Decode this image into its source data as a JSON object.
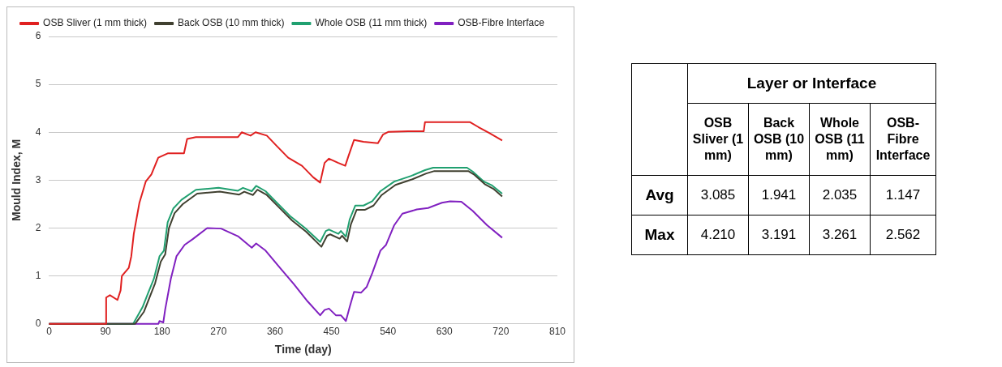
{
  "chart_data": [
    {
      "type": "line",
      "xlabel": "Time (day)",
      "ylabel": "Mould Index, M",
      "xlim": [
        0,
        810
      ],
      "xticks": [
        0,
        90,
        180,
        270,
        360,
        450,
        540,
        630,
        720,
        810
      ],
      "ylim": [
        0,
        6
      ],
      "yticks": [
        0,
        1,
        2,
        3,
        4,
        5,
        6
      ],
      "grid": "y",
      "legend": "top",
      "marker": "none",
      "line_style": "solid",
      "series": [
        {
          "name": "OSB Sliver (1 mm thick)",
          "color": "#e02020",
          "x": [
            0,
            90,
            91,
            97,
            109,
            114,
            116,
            127,
            131,
            135,
            144,
            154,
            163,
            174,
            189,
            215,
            220,
            234,
            301,
            307,
            321,
            329,
            347,
            363,
            381,
            403,
            421,
            432,
            439,
            446,
            461,
            472,
            477,
            486,
            501,
            524,
            532,
            541,
            572,
            597,
            599,
            671,
            684,
            702,
            722
          ],
          "values": [
            0,
            0,
            0.55,
            0.6,
            0.5,
            0.7,
            1.0,
            1.17,
            1.41,
            1.88,
            2.53,
            2.97,
            3.12,
            3.47,
            3.56,
            3.56,
            3.86,
            3.9,
            3.9,
            4.0,
            3.93,
            4.0,
            3.93,
            3.71,
            3.47,
            3.3,
            3.06,
            2.95,
            3.36,
            3.45,
            3.36,
            3.3,
            3.5,
            3.84,
            3.8,
            3.77,
            3.95,
            4.01,
            4.02,
            4.02,
            4.21,
            4.21,
            4.11,
            3.98,
            3.83
          ]
        },
        {
          "name": "Back OSB (10 mm thick)",
          "color": "#404030",
          "x": [
            0,
            137,
            151,
            160,
            169,
            178,
            185,
            191,
            200,
            213,
            236,
            272,
            303,
            311,
            325,
            332,
            347,
            365,
            387,
            410,
            434,
            443,
            448,
            463,
            467,
            475,
            481,
            490,
            503,
            517,
            530,
            552,
            579,
            601,
            614,
            668,
            677,
            695,
            708,
            722
          ],
          "values": [
            0,
            0,
            0.25,
            0.55,
            0.85,
            1.3,
            1.45,
            2.0,
            2.31,
            2.5,
            2.72,
            2.76,
            2.7,
            2.76,
            2.69,
            2.8,
            2.69,
            2.45,
            2.16,
            1.92,
            1.61,
            1.84,
            1.87,
            1.78,
            1.84,
            1.72,
            2.08,
            2.38,
            2.38,
            2.47,
            2.69,
            2.9,
            3.02,
            3.14,
            3.19,
            3.19,
            3.12,
            2.91,
            2.82,
            2.66
          ]
        },
        {
          "name": "Whole OSB (11 mm thick)",
          "color": "#20a070",
          "x": [
            0,
            134,
            149,
            158,
            167,
            176,
            183,
            189,
            198,
            211,
            234,
            270,
            301,
            309,
            323,
            330,
            345,
            363,
            385,
            408,
            432,
            441,
            446,
            461,
            465,
            473,
            479,
            488,
            501,
            515,
            528,
            550,
            577,
            599,
            612,
            666,
            675,
            693,
            706,
            722
          ],
          "values": [
            0,
            0,
            0.35,
            0.65,
            0.94,
            1.41,
            1.53,
            2.12,
            2.41,
            2.59,
            2.8,
            2.84,
            2.78,
            2.84,
            2.77,
            2.88,
            2.77,
            2.53,
            2.24,
            2.0,
            1.71,
            1.94,
            1.97,
            1.88,
            1.94,
            1.82,
            2.18,
            2.47,
            2.47,
            2.56,
            2.77,
            2.97,
            3.09,
            3.21,
            3.26,
            3.26,
            3.18,
            2.97,
            2.89,
            2.72
          ]
        },
        {
          "name": "OSB-Fibre Interface",
          "color": "#8020c0",
          "x": [
            0,
            174,
            176,
            182,
            185,
            194,
            203,
            216,
            229,
            252,
            274,
            301,
            323,
            330,
            345,
            368,
            390,
            412,
            432,
            439,
            446,
            457,
            465,
            473,
            479,
            486,
            497,
            506,
            515,
            528,
            537,
            550,
            563,
            586,
            604,
            626,
            639,
            657,
            675,
            698,
            722
          ],
          "values": [
            0,
            0,
            0.06,
            0.03,
            0.3,
            0.94,
            1.41,
            1.65,
            1.77,
            2.0,
            1.99,
            1.83,
            1.59,
            1.68,
            1.53,
            1.17,
            0.83,
            0.47,
            0.18,
            0.29,
            0.32,
            0.18,
            0.18,
            0.06,
            0.35,
            0.67,
            0.65,
            0.77,
            1.06,
            1.53,
            1.65,
            2.06,
            2.3,
            2.39,
            2.42,
            2.53,
            2.56,
            2.55,
            2.36,
            2.06,
            1.8
          ]
        }
      ]
    },
    {
      "type": "other",
      "title": "Layer or Interface",
      "categories": [
        "OSB Sliver (1 mm)",
        "Back OSB (10 mm)",
        "Whole OSB (11 mm)",
        "OSB-Fibre Interface"
      ],
      "y_categories": [
        "Avg",
        "Max"
      ],
      "cell_labels": [
        [
          "3.085",
          "1.941",
          "2.035",
          "1.147"
        ],
        [
          "4.210",
          "3.191",
          "3.261",
          "2.562"
        ]
      ]
    }
  ]
}
